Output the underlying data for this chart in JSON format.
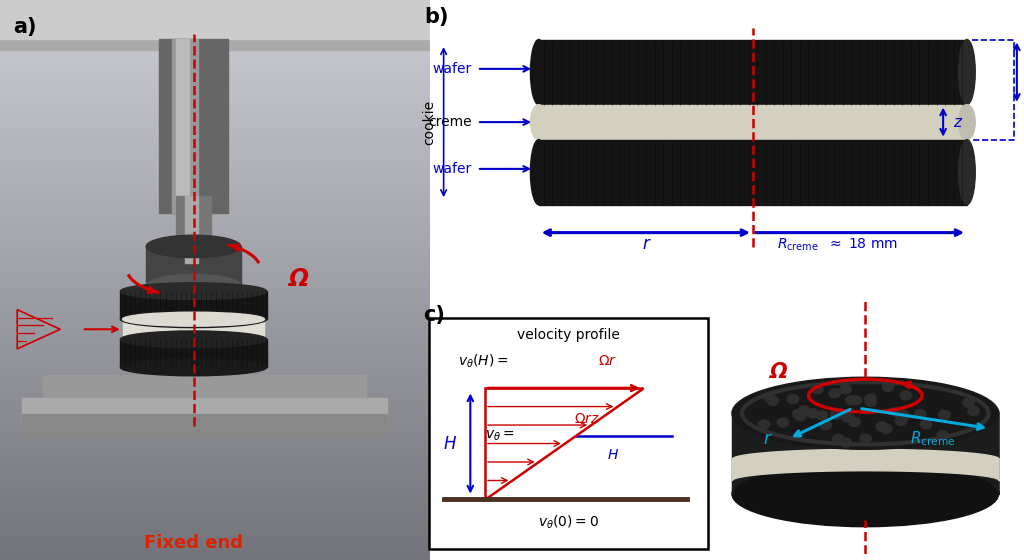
{
  "bg_color": "#ffffff",
  "photo_bg": "#c8c8c8",
  "panel_a_label": "a)",
  "panel_b_label": "b)",
  "panel_c_label": "c)",
  "fixed_end_label": "Fixed end",
  "omega_label": "Ω",
  "wafer_label": "wafer",
  "creme_label": "creme",
  "cookie_label": "cookie",
  "H_label": "H",
  "Z_label": "z",
  "r_label": "r",
  "vel_profile_title": "velocity profile",
  "dark_cookie": "#151515",
  "creme_color": "#d4d0c0",
  "blue_color": "#0000cc",
  "red_color": "#cc0000",
  "cyan_color": "#00aadd",
  "label_red": "#dd2200",
  "brown_color": "#4a3020"
}
